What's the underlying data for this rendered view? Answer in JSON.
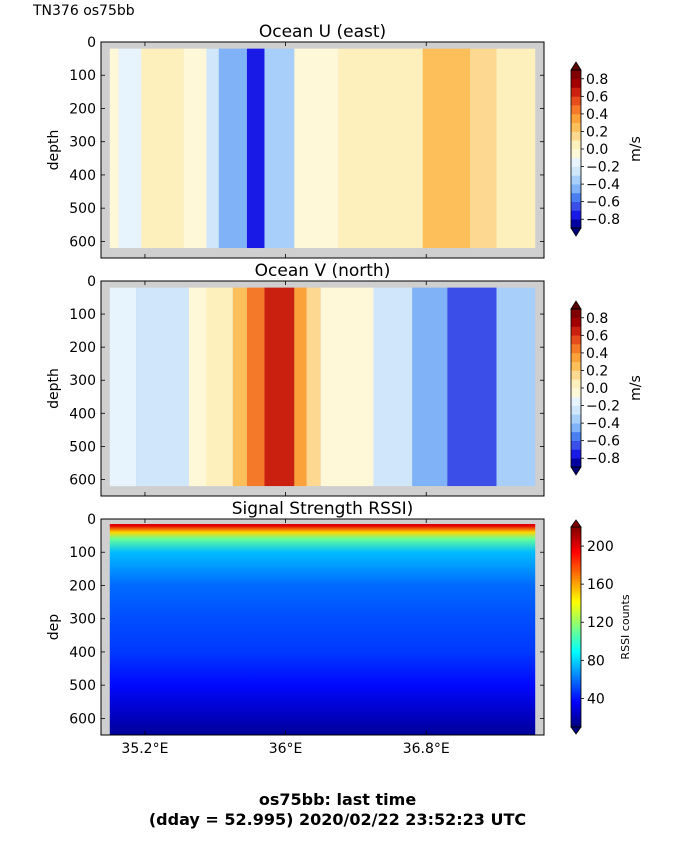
{
  "header": {
    "run_label": "TN376 os75bb"
  },
  "footer": {
    "line1": "os75bb: last time",
    "line2": "(dday = 52.995) 2020/02/22 23:52:23 UTC"
  },
  "chart_data": [
    {
      "type": "heatmap",
      "title": "Ocean U (east)",
      "ylabel": "depth",
      "xlim": [
        34.95,
        37.47
      ],
      "ylim": [
        650,
        0
      ],
      "y_ticks": [
        0,
        100,
        200,
        300,
        400,
        500,
        600
      ],
      "x_ticks": [
        35.2,
        36.0,
        36.8
      ],
      "x_tick_labels": [
        "35.2°E",
        "36°E",
        "36.8°E"
      ],
      "data_x_range": [
        35.0,
        37.42
      ],
      "colorbar": {
        "label": "m/s",
        "levels": [
          -0.9,
          -0.8,
          -0.7,
          -0.6,
          -0.5,
          -0.4,
          -0.3,
          -0.2,
          -0.1,
          0.0,
          0.1,
          0.2,
          0.3,
          0.4,
          0.5,
          0.6,
          0.7,
          0.8,
          0.9
        ],
        "ticks": [
          0.8,
          0.6,
          0.4,
          0.2,
          0.0,
          -0.2,
          -0.4,
          -0.6,
          -0.8
        ],
        "tick_labels": [
          "0.8",
          "0.6",
          "0.4",
          "0.2",
          "0.0",
          "−0.2",
          "−0.4",
          "−0.6",
          "−0.8"
        ],
        "colors": [
          "#0000a0",
          "#1a1ae6",
          "#3b4fe8",
          "#4a7ff0",
          "#7fb2f7",
          "#a8cff9",
          "#cfe6fb",
          "#e8f4fd",
          "#fff8d8",
          "#fef0bc",
          "#fdd891",
          "#fdbf5a",
          "#fba23a",
          "#f47a2a",
          "#e64d1d",
          "#c9200f",
          "#a10000",
          "#800000"
        ],
        "under_color": "#00007a",
        "over_color": "#5a0000"
      },
      "columns": [
        {
          "lon_range": [
            35.0,
            35.05
          ],
          "value": -0.05
        },
        {
          "lon_range": [
            35.05,
            35.18
          ],
          "value": -0.15
        },
        {
          "lon_range": [
            35.18,
            35.42
          ],
          "value": 0.05
        },
        {
          "lon_range": [
            35.42,
            35.55
          ],
          "value": -0.1
        },
        {
          "lon_range": [
            35.55,
            35.62
          ],
          "value": -0.3
        },
        {
          "lon_range": [
            35.62,
            35.78
          ],
          "value": -0.5
        },
        {
          "lon_range": [
            35.78,
            35.88
          ],
          "value": -0.75
        },
        {
          "lon_range": [
            35.88,
            36.05
          ],
          "value": -0.35
        },
        {
          "lon_range": [
            36.05,
            36.3
          ],
          "value": -0.05
        },
        {
          "lon_range": [
            36.3,
            36.78
          ],
          "value": 0.05
        },
        {
          "lon_range": [
            36.78,
            37.05
          ],
          "value": 0.25
        },
        {
          "lon_range": [
            37.05,
            37.2
          ],
          "value": 0.15
        },
        {
          "lon_range": [
            37.2,
            37.42
          ],
          "value": 0.05
        }
      ]
    },
    {
      "type": "heatmap",
      "title": "Ocean V (north)",
      "ylabel": "depth",
      "xlim": [
        34.95,
        37.47
      ],
      "ylim": [
        650,
        0
      ],
      "y_ticks": [
        0,
        100,
        200,
        300,
        400,
        500,
        600
      ],
      "x_ticks": [
        35.2,
        36.0,
        36.8
      ],
      "x_tick_labels": [
        "35.2°E",
        "36°E",
        "36.8°E"
      ],
      "data_x_range": [
        35.0,
        37.42
      ],
      "colorbar": {
        "label": "m/s",
        "levels": [
          -0.9,
          -0.8,
          -0.7,
          -0.6,
          -0.5,
          -0.4,
          -0.3,
          -0.2,
          -0.1,
          0.0,
          0.1,
          0.2,
          0.3,
          0.4,
          0.5,
          0.6,
          0.7,
          0.8,
          0.9
        ],
        "ticks": [
          0.8,
          0.6,
          0.4,
          0.2,
          0.0,
          -0.2,
          -0.4,
          -0.6,
          -0.8
        ],
        "tick_labels": [
          "0.8",
          "0.6",
          "0.4",
          "0.2",
          "0.0",
          "−0.2",
          "−0.4",
          "−0.6",
          "−0.8"
        ],
        "colors": [
          "#0000a0",
          "#1a1ae6",
          "#3b4fe8",
          "#4a7ff0",
          "#7fb2f7",
          "#a8cff9",
          "#cfe6fb",
          "#e8f4fd",
          "#fff8d8",
          "#fef0bc",
          "#fdd891",
          "#fdbf5a",
          "#fba23a",
          "#f47a2a",
          "#e64d1d",
          "#c9200f",
          "#a10000",
          "#800000"
        ],
        "under_color": "#00007a",
        "over_color": "#5a0000"
      },
      "columns": [
        {
          "lon_range": [
            35.0,
            35.15
          ],
          "value": -0.15
        },
        {
          "lon_range": [
            35.15,
            35.45
          ],
          "value": -0.25
        },
        {
          "lon_range": [
            35.45,
            35.55
          ],
          "value": -0.05
        },
        {
          "lon_range": [
            35.55,
            35.7
          ],
          "value": 0.05
        },
        {
          "lon_range": [
            35.7,
            35.78
          ],
          "value": 0.25
        },
        {
          "lon_range": [
            35.78,
            35.88
          ],
          "value": 0.45
        },
        {
          "lon_range": [
            35.88,
            36.05
          ],
          "value": 0.65
        },
        {
          "lon_range": [
            36.05,
            36.12
          ],
          "value": 0.35
        },
        {
          "lon_range": [
            36.12,
            36.2
          ],
          "value": 0.15
        },
        {
          "lon_range": [
            36.2,
            36.5
          ],
          "value": -0.05
        },
        {
          "lon_range": [
            36.5,
            36.72
          ],
          "value": -0.25
        },
        {
          "lon_range": [
            36.72,
            36.92
          ],
          "value": -0.45
        },
        {
          "lon_range": [
            36.92,
            37.2
          ],
          "value": -0.7
        },
        {
          "lon_range": [
            37.2,
            37.42
          ],
          "value": -0.35
        }
      ]
    },
    {
      "type": "heatmap",
      "title": "Signal Strength RSSI)",
      "ylabel": "dep",
      "xlim": [
        34.95,
        37.47
      ],
      "ylim": [
        650,
        0
      ],
      "y_ticks": [
        0,
        100,
        200,
        300,
        400,
        500,
        600
      ],
      "x_ticks": [
        35.2,
        36.0,
        36.8
      ],
      "x_tick_labels": [
        "35.2°E",
        "36°E",
        "36.8°E"
      ],
      "data_x_range": [
        35.0,
        37.42
      ],
      "colorbar": {
        "label": "RSSI counts",
        "range": [
          10,
          220
        ],
        "ticks": [
          200,
          160,
          120,
          80,
          40
        ],
        "tick_labels": [
          "200",
          "160",
          "120",
          "80",
          "40"
        ],
        "colormap": "jet"
      },
      "depth_profile": [
        {
          "depth": 20,
          "value": 200
        },
        {
          "depth": 40,
          "value": 150
        },
        {
          "depth": 60,
          "value": 110
        },
        {
          "depth": 100,
          "value": 75
        },
        {
          "depth": 200,
          "value": 58
        },
        {
          "depth": 300,
          "value": 52
        },
        {
          "depth": 400,
          "value": 48
        },
        {
          "depth": 500,
          "value": 38
        },
        {
          "depth": 600,
          "value": 22
        },
        {
          "depth": 650,
          "value": 15
        }
      ]
    }
  ]
}
